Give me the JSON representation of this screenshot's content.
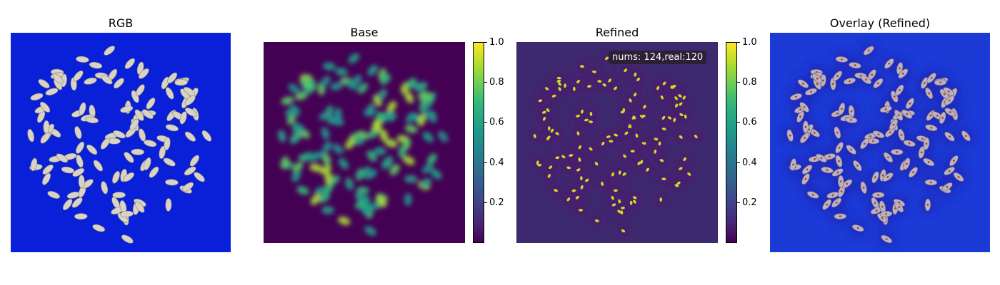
{
  "panels": {
    "rgb": {
      "title": "RGB"
    },
    "base": {
      "title": "Base"
    },
    "refined": {
      "title": "Refined",
      "annotation": "nums: 124,real:120"
    },
    "overlay": {
      "title": "Overlay (Refined)"
    }
  },
  "colorbar": {
    "ticks": [
      "1.0",
      "0.8",
      "0.6",
      "0.4",
      "0.2"
    ],
    "tick_values": [
      1.0,
      0.8,
      0.6,
      0.4,
      0.2
    ],
    "min": 0.0,
    "max": 1.0,
    "colormap": "viridis"
  },
  "colors": {
    "rgb_background": "#0a1fd8",
    "seed": "#d8d3c5",
    "heat_low": "#440154",
    "heat_high": "#fde725",
    "overlay_background": "#1b3ad6"
  }
}
